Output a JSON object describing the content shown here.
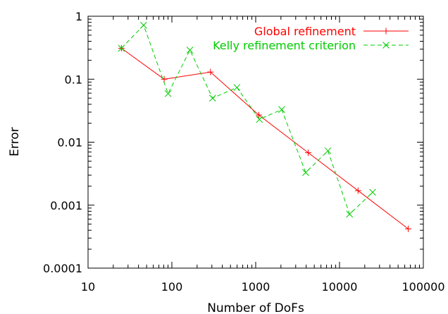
{
  "chart_data": {
    "type": "line",
    "xlabel": "Number of DoFs",
    "ylabel": "Error",
    "xscale": "log",
    "yscale": "log",
    "xlim": [
      10,
      100000
    ],
    "ylim": [
      0.0001,
      1
    ],
    "grid": false,
    "legend_position": "top-right",
    "x_tick_labels": [
      "10",
      "100",
      "1000",
      "10000",
      "100000"
    ],
    "y_tick_labels": [
      "0.0001",
      "0.001",
      "0.01",
      "0.1",
      "1"
    ],
    "series": [
      {
        "name": "Global refinement",
        "color": "#ff0000",
        "marker": "plus",
        "dash": "solid",
        "x": [
          25,
          81,
          289,
          1089,
          4225,
          16641,
          66049
        ],
        "y": [
          0.31,
          0.1,
          0.13,
          0.027,
          0.0068,
          0.0017,
          0.00042
        ]
      },
      {
        "name": "Kelly refinement criterion",
        "color": "#00cc00",
        "marker": "cross",
        "dash": "dashed",
        "x": [
          25,
          46,
          90,
          164,
          306,
          597,
          1109,
          2042,
          3949,
          7272,
          13181,
          24800
        ],
        "y": [
          0.31,
          0.72,
          0.059,
          0.29,
          0.05,
          0.074,
          0.023,
          0.033,
          0.0033,
          0.0073,
          0.00072,
          0.0016
        ]
      }
    ]
  }
}
